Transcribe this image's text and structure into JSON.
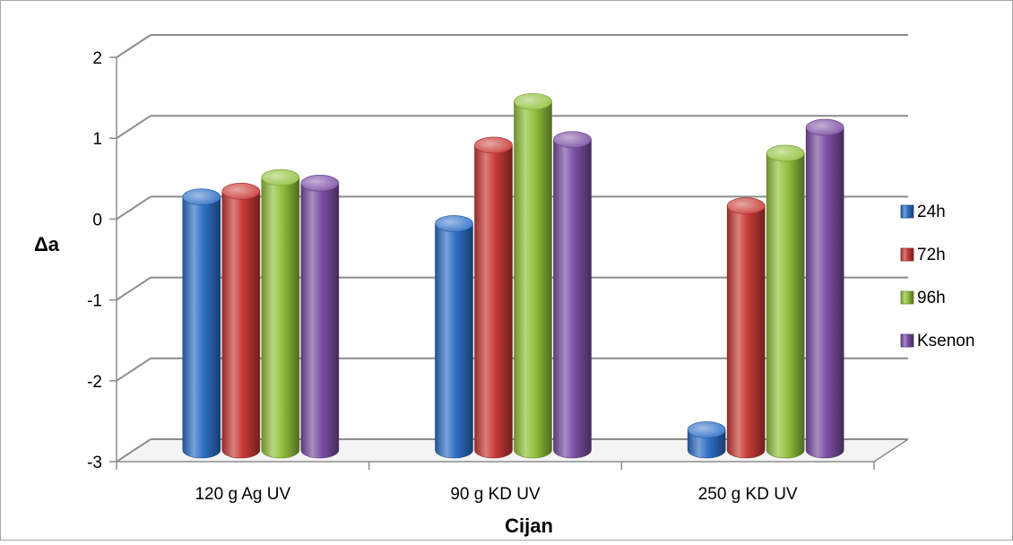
{
  "chart_data": {
    "type": "bar",
    "title": "",
    "xlabel": "Cijan",
    "ylabel": "Δa",
    "categories": [
      "120 g Ag UV",
      "90 g KD UV",
      "250 g KD UV"
    ],
    "yticks": [
      "2",
      "1",
      "0",
      "-1",
      "-2",
      "-3"
    ],
    "ylim": [
      -3,
      2
    ],
    "grid": true,
    "legend_position": "right",
    "series": [
      {
        "name": "24h",
        "color": "#2e6fc6",
        "values": [
          0.13,
          -0.2,
          -2.75
        ]
      },
      {
        "name": "72h",
        "color": "#c83a36",
        "values": [
          0.2,
          0.77,
          0.02
        ]
      },
      {
        "name": "96h",
        "color": "#92c13c",
        "values": [
          0.37,
          1.31,
          0.67
        ]
      },
      {
        "name": "Ksenon",
        "color": "#7b4ea3",
        "values": [
          0.3,
          0.84,
          0.99
        ]
      }
    ]
  }
}
